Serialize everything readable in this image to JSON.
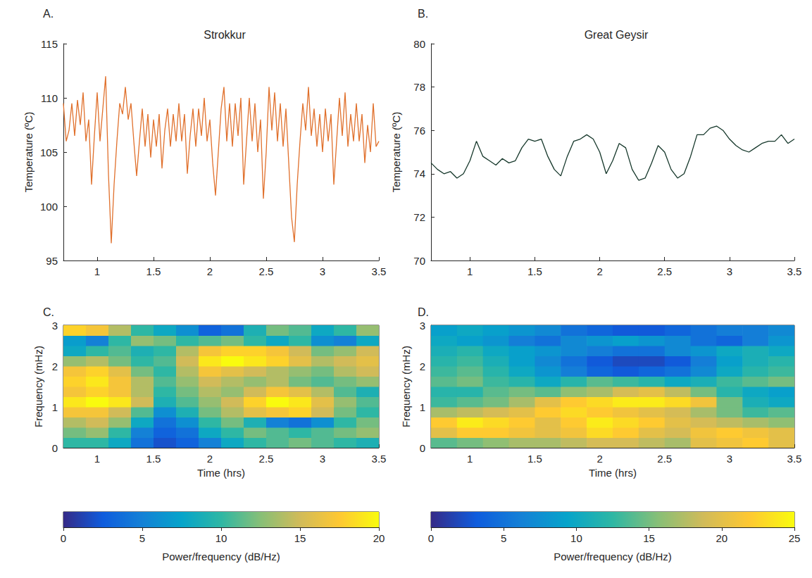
{
  "chart_data": [
    {
      "type": "line",
      "panel_label": "A.",
      "title": "Strokkur",
      "ylabel": "Temperature (ºC)",
      "x": [
        0.7,
        0.725,
        0.75,
        0.775,
        0.8,
        0.825,
        0.85,
        0.875,
        0.9,
        0.925,
        0.95,
        0.975,
        1,
        1.025,
        1.05,
        1.075,
        1.1,
        1.125,
        1.15,
        1.175,
        1.2,
        1.225,
        1.25,
        1.275,
        1.3,
        1.325,
        1.35,
        1.375,
        1.4,
        1.425,
        1.45,
        1.475,
        1.5,
        1.525,
        1.55,
        1.575,
        1.6,
        1.625,
        1.65,
        1.675,
        1.7,
        1.725,
        1.75,
        1.775,
        1.8,
        1.825,
        1.85,
        1.875,
        1.9,
        1.925,
        1.95,
        1.975,
        2,
        2.025,
        2.05,
        2.075,
        2.1,
        2.125,
        2.15,
        2.175,
        2.2,
        2.225,
        2.25,
        2.275,
        2.3,
        2.325,
        2.35,
        2.375,
        2.4,
        2.425,
        2.45,
        2.475,
        2.5,
        2.525,
        2.55,
        2.575,
        2.6,
        2.625,
        2.65,
        2.675,
        2.7,
        2.725,
        2.75,
        2.775,
        2.8,
        2.825,
        2.85,
        2.875,
        2.9,
        2.925,
        2.95,
        2.975,
        3,
        3.025,
        3.05,
        3.075,
        3.1,
        3.125,
        3.15,
        3.175,
        3.2,
        3.225,
        3.25,
        3.275,
        3.3,
        3.325,
        3.35,
        3.375,
        3.4,
        3.425,
        3.45,
        3.475,
        3.5
      ],
      "series": [
        {
          "color": "#e0702c",
          "values": [
            109.5,
            106,
            107,
            109.5,
            106.5,
            109.8,
            107.5,
            110.5,
            106,
            108,
            102,
            106.5,
            110.5,
            106,
            109,
            112,
            103,
            96.6,
            102,
            106,
            109.5,
            108.5,
            111,
            108,
            109.5,
            106,
            102.8,
            106,
            109,
            105.5,
            108.5,
            104.5,
            108,
            105.5,
            108.5,
            103.5,
            107,
            109,
            105.5,
            108.5,
            106,
            109.5,
            106,
            108.5,
            103,
            106.5,
            109,
            105.5,
            109,
            106.5,
            110,
            106,
            108,
            104,
            101,
            105,
            109,
            111,
            106,
            109.5,
            105.5,
            109.5,
            106.5,
            110,
            102,
            106,
            110,
            106,
            109.5,
            105,
            108,
            100.7,
            105,
            111,
            107,
            110.5,
            106,
            109.5,
            105.5,
            109,
            104,
            99,
            96.7,
            102,
            106,
            109.5,
            107,
            111,
            106.5,
            109,
            105.5,
            108.5,
            105,
            109,
            106,
            108.5,
            102,
            106,
            110,
            106.5,
            110.5,
            105.5,
            108.5,
            106,
            109.5,
            106,
            108.5,
            104,
            107.5,
            105,
            109.5,
            105.5,
            106
          ]
        }
      ],
      "xlim": [
        0.7,
        3.5
      ],
      "xticks": [
        1,
        1.5,
        2,
        2.5,
        3,
        3.5
      ],
      "ylim": [
        95,
        115
      ],
      "yticks": [
        95,
        100,
        105,
        110,
        115
      ],
      "grid": false
    },
    {
      "type": "line",
      "panel_label": "B.",
      "title": "Great Geysir",
      "ylabel": "Temperature (ºC)",
      "x": [
        0.7,
        0.75,
        0.8,
        0.85,
        0.9,
        0.95,
        1,
        1.05,
        1.1,
        1.15,
        1.2,
        1.25,
        1.3,
        1.35,
        1.4,
        1.45,
        1.5,
        1.55,
        1.6,
        1.65,
        1.7,
        1.75,
        1.8,
        1.85,
        1.9,
        1.95,
        2,
        2.05,
        2.1,
        2.15,
        2.2,
        2.25,
        2.3,
        2.35,
        2.4,
        2.45,
        2.5,
        2.55,
        2.6,
        2.65,
        2.7,
        2.75,
        2.8,
        2.85,
        2.9,
        2.95,
        3,
        3.05,
        3.1,
        3.15,
        3.2,
        3.25,
        3.3,
        3.35,
        3.4,
        3.45,
        3.5
      ],
      "series": [
        {
          "color": "#15372a",
          "values": [
            74.5,
            74.2,
            74.0,
            74.1,
            73.8,
            74.0,
            74.6,
            75.5,
            74.8,
            74.6,
            74.4,
            74.7,
            74.5,
            74.6,
            75.2,
            75.6,
            75.5,
            75.6,
            74.8,
            74.2,
            73.9,
            74.8,
            75.5,
            75.6,
            75.8,
            75.6,
            75.0,
            74.0,
            74.6,
            75.4,
            75.2,
            74.2,
            73.7,
            73.8,
            74.5,
            75.3,
            75.0,
            74.2,
            73.8,
            74.0,
            74.8,
            75.8,
            75.8,
            76.1,
            76.2,
            76.0,
            75.6,
            75.3,
            75.1,
            75.0,
            75.2,
            75.4,
            75.5,
            75.5,
            75.8,
            75.4,
            75.6
          ]
        }
      ],
      "xlim": [
        0.7,
        3.5
      ],
      "xticks": [
        1,
        1.5,
        2,
        2.5,
        3,
        3.5
      ],
      "ylim": [
        70,
        80
      ],
      "yticks": [
        70,
        72,
        74,
        76,
        78,
        80
      ],
      "grid": false
    },
    {
      "type": "heatmap",
      "panel_label": "C.",
      "xlabel": "Time (hrs)",
      "ylabel": "Frequency (mHz)",
      "x_edges": [
        0.7,
        0.9,
        1.1,
        1.3,
        1.5,
        1.7,
        1.9,
        2.1,
        2.3,
        2.5,
        2.7,
        2.9,
        3.1,
        3.3,
        3.5
      ],
      "y_edges": [
        0,
        0.25,
        0.5,
        0.75,
        1,
        1.25,
        1.5,
        1.75,
        2,
        2.25,
        2.5,
        2.75,
        3
      ],
      "cells": [
        [
          10,
          10,
          8,
          4,
          2,
          3,
          5,
          8,
          10,
          11,
          12,
          11,
          10,
          9
        ],
        [
          12,
          13,
          10,
          5,
          3,
          4,
          8,
          10,
          12,
          11,
          10,
          11,
          12,
          13
        ],
        [
          14,
          15,
          13,
          8,
          4,
          6,
          10,
          12,
          9,
          5,
          4,
          6,
          10,
          12
        ],
        [
          17,
          17,
          15,
          11,
          6,
          9,
          12,
          14,
          16,
          17,
          18,
          15,
          12,
          10
        ],
        [
          19,
          20,
          19,
          15,
          9,
          11,
          13,
          15,
          18,
          20,
          19,
          16,
          13,
          11
        ],
        [
          17,
          18,
          17,
          14,
          10,
          12,
          14,
          13,
          15,
          17,
          16,
          14,
          11,
          9
        ],
        [
          18,
          19,
          17,
          14,
          11,
          13,
          15,
          14,
          13,
          14,
          12,
          11,
          12,
          13
        ],
        [
          17,
          18,
          16,
          12,
          10,
          14,
          17,
          16,
          15,
          14,
          13,
          12,
          14,
          15
        ],
        [
          13,
          14,
          12,
          10,
          11,
          15,
          19,
          20,
          19,
          18,
          16,
          14,
          15,
          16
        ],
        [
          8,
          10,
          11,
          9,
          10,
          14,
          17,
          18,
          18,
          17,
          15,
          12,
          13,
          15
        ],
        [
          7,
          5,
          10,
          13,
          12,
          10,
          11,
          12,
          10,
          8,
          10,
          6,
          5,
          8
        ],
        [
          18,
          17,
          14,
          10,
          8,
          6,
          3,
          4,
          9,
          12,
          11,
          8,
          10,
          13
        ]
      ],
      "xlim": [
        0.7,
        3.5
      ],
      "xticks": [
        1,
        1.5,
        2,
        2.5,
        3,
        3.5
      ],
      "ylim": [
        0,
        3
      ],
      "yticks": [
        0,
        1,
        2,
        3
      ],
      "grid": false,
      "colorbar": {
        "range": [
          0,
          20
        ],
        "ticks": [
          0,
          5,
          10,
          15,
          20
        ],
        "label": "Power/frequency (dB/Hz)"
      }
    },
    {
      "type": "heatmap",
      "panel_label": "D.",
      "xlabel": "Time (hrs)",
      "ylabel": "Frequency (mHz)",
      "x_edges": [
        0.7,
        0.9,
        1.1,
        1.3,
        1.5,
        1.7,
        1.9,
        2.1,
        2.3,
        2.5,
        2.7,
        2.9,
        3.1,
        3.3,
        3.5
      ],
      "y_edges": [
        0,
        0.25,
        0.5,
        0.75,
        1,
        1.25,
        1.5,
        1.75,
        2,
        2.25,
        2.5,
        2.75,
        3
      ],
      "cells": [
        [
          14,
          15,
          16,
          17,
          17,
          18,
          19,
          19,
          18,
          17,
          20,
          21,
          22,
          20
        ],
        [
          20,
          22,
          22,
          21,
          20,
          21,
          23,
          22,
          20,
          19,
          21,
          22,
          21,
          20
        ],
        [
          22,
          24,
          23,
          22,
          20,
          22,
          24,
          23,
          22,
          20,
          19,
          18,
          17,
          16
        ],
        [
          17,
          18,
          19,
          20,
          22,
          23,
          22,
          21,
          20,
          19,
          17,
          15,
          13,
          14
        ],
        [
          13,
          14,
          15,
          17,
          20,
          22,
          23,
          24,
          24,
          23,
          21,
          15,
          11,
          10
        ],
        [
          12,
          12,
          14,
          15,
          14,
          16,
          17,
          19,
          20,
          18,
          15,
          12,
          10,
          9
        ],
        [
          14,
          15,
          13,
          12,
          10,
          12,
          14,
          13,
          12,
          10,
          11,
          13,
          14,
          15
        ],
        [
          13,
          14,
          12,
          10,
          8,
          6,
          4,
          3,
          4,
          5,
          7,
          10,
          12,
          13
        ],
        [
          12,
          13,
          11,
          9,
          7,
          5,
          3,
          2,
          2,
          3,
          6,
          9,
          11,
          12
        ],
        [
          11,
          12,
          10,
          9,
          8,
          7,
          6,
          5,
          5,
          7,
          8,
          10,
          11,
          10
        ],
        [
          10,
          9,
          8,
          6,
          5,
          7,
          8,
          9,
          8,
          7,
          5,
          4,
          6,
          8
        ],
        [
          9,
          10,
          9,
          8,
          7,
          5,
          4,
          3,
          3,
          4,
          5,
          6,
          6,
          7
        ]
      ],
      "xlim": [
        0.7,
        3.5
      ],
      "xticks": [
        1,
        1.5,
        2,
        2.5,
        3,
        3.5
      ],
      "ylim": [
        0,
        3
      ],
      "yticks": [
        0,
        1,
        2,
        3
      ],
      "grid": false,
      "colorbar": {
        "range": [
          0,
          25
        ],
        "ticks": [
          0,
          5,
          10,
          15,
          20,
          25
        ],
        "label": "Power/frequency (dB/Hz)"
      }
    }
  ]
}
